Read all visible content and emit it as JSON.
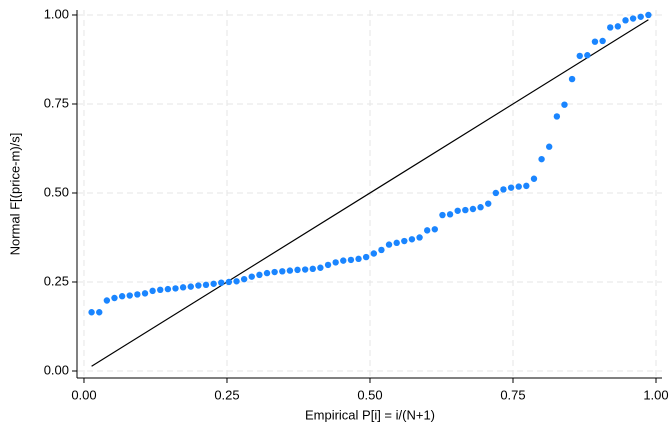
{
  "chart_data": {
    "type": "scatter",
    "x_label": "Empirical P[i] = i/(N+1)",
    "y_label": "Normal F[(price-m)/s]",
    "x": [
      0.0133,
      0.0267,
      0.04,
      0.0533,
      0.0667,
      0.08,
      0.0933,
      0.1067,
      0.12,
      0.1333,
      0.1467,
      0.16,
      0.1733,
      0.1867,
      0.2,
      0.2133,
      0.2267,
      0.24,
      0.2533,
      0.2667,
      0.28,
      0.2933,
      0.3067,
      0.32,
      0.3333,
      0.3467,
      0.36,
      0.3733,
      0.3867,
      0.4,
      0.4133,
      0.4267,
      0.44,
      0.4533,
      0.4667,
      0.48,
      0.4933,
      0.5067,
      0.52,
      0.5333,
      0.5467,
      0.56,
      0.5733,
      0.5867,
      0.6,
      0.6133,
      0.6267,
      0.64,
      0.6533,
      0.6667,
      0.68,
      0.6933,
      0.7067,
      0.72,
      0.7333,
      0.7467,
      0.76,
      0.7733,
      0.7867,
      0.8,
      0.8133,
      0.8267,
      0.84,
      0.8533,
      0.8667,
      0.88,
      0.8933,
      0.9067,
      0.92,
      0.9333,
      0.9467,
      0.96,
      0.9733,
      0.9867
    ],
    "series": [
      {
        "color": "#1a85ff",
        "values": [
          0.165,
          0.165,
          0.198,
          0.205,
          0.21,
          0.212,
          0.215,
          0.218,
          0.225,
          0.228,
          0.23,
          0.232,
          0.235,
          0.237,
          0.24,
          0.242,
          0.245,
          0.248,
          0.25,
          0.252,
          0.258,
          0.265,
          0.27,
          0.275,
          0.278,
          0.28,
          0.282,
          0.284,
          0.285,
          0.287,
          0.29,
          0.298,
          0.305,
          0.31,
          0.312,
          0.315,
          0.32,
          0.33,
          0.34,
          0.355,
          0.36,
          0.365,
          0.37,
          0.375,
          0.395,
          0.398,
          0.438,
          0.44,
          0.45,
          0.452,
          0.455,
          0.46,
          0.47,
          0.5,
          0.51,
          0.515,
          0.518,
          0.52,
          0.54,
          0.595,
          0.63,
          0.715,
          0.748,
          0.82,
          0.885,
          0.887,
          0.925,
          0.927,
          0.965,
          0.968,
          0.985,
          0.99,
          0.995,
          1.0
        ]
      }
    ],
    "reference_line": {
      "color": "#000000",
      "x": [
        0.0133,
        0.9867
      ],
      "values": [
        0.0133,
        0.9867
      ]
    },
    "xlim": [
      -0.0122,
      1.0105
    ],
    "ylim": [
      -0.0197,
      1.014
    ],
    "xticks": [
      {
        "value": 0,
        "label": "0.00"
      },
      {
        "value": 0.25,
        "label": "0.25"
      },
      {
        "value": 0.5,
        "label": "0.50"
      },
      {
        "value": 0.75,
        "label": "0.75"
      },
      {
        "value": 1,
        "label": "1.00"
      }
    ],
    "yticks": [
      {
        "value": 0,
        "label": "0.00"
      },
      {
        "value": 0.25,
        "label": "0.25"
      },
      {
        "value": 0.5,
        "label": "0.50"
      },
      {
        "value": 0.75,
        "label": "0.75"
      },
      {
        "value": 1,
        "label": "1.00"
      }
    ],
    "grid": true
  }
}
